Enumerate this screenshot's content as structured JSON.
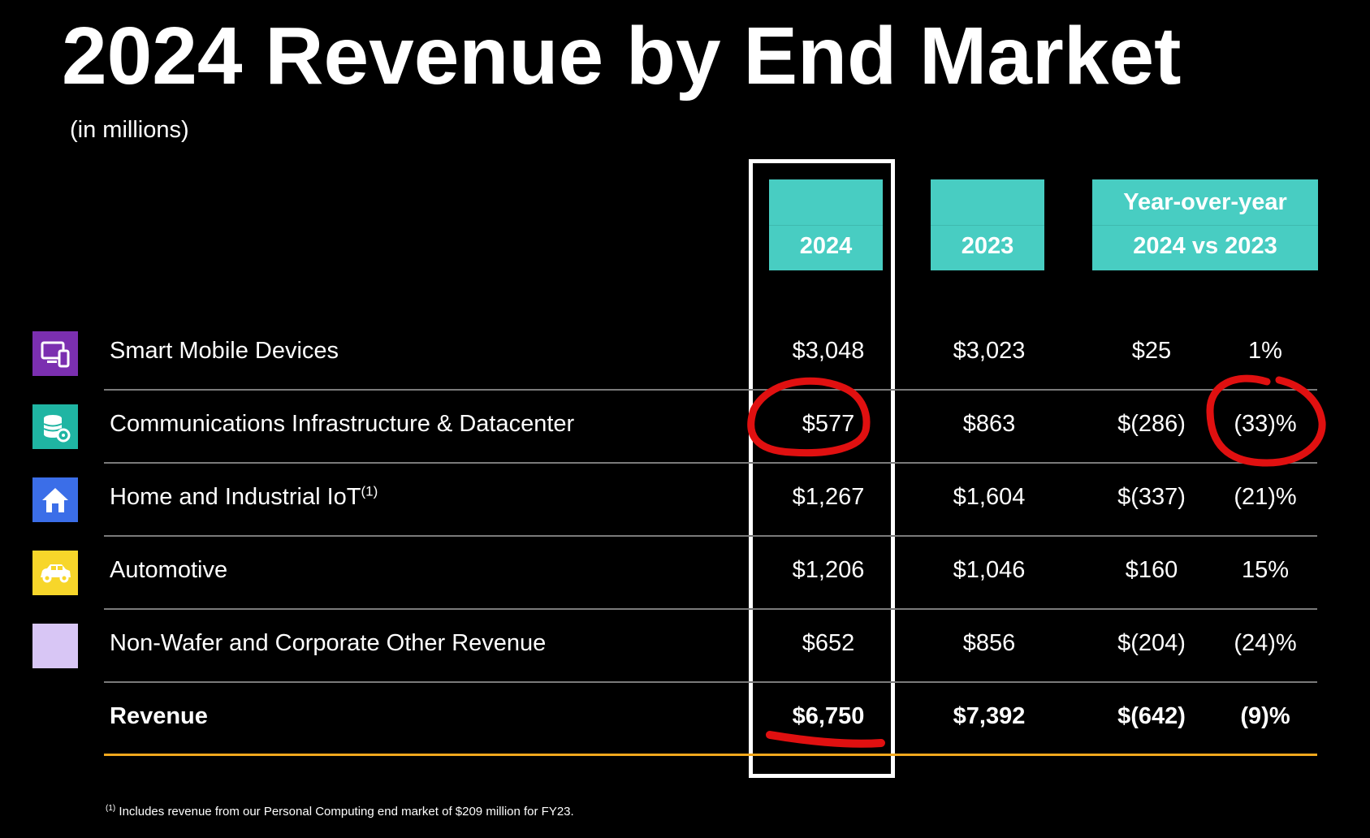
{
  "title": "2024 Revenue by End Market",
  "subtitle": "(in millions)",
  "headers": {
    "col_2024": "2024",
    "col_2023": "2023",
    "yoy_line1": "Year-over-year",
    "yoy_line2": "2024 vs 2023"
  },
  "rows": [
    {
      "label": "Smart Mobile Devices",
      "sup": "",
      "v2024": "$3,048",
      "v2023": "$3,023",
      "delta": "$25",
      "pct": "1%",
      "icon": "mobile-devices-icon",
      "icon_color": "#7b2fb0"
    },
    {
      "label": "Communications Infrastructure & Datacenter",
      "sup": "",
      "v2024": "$577",
      "v2023": "$863",
      "delta": "$(286)",
      "pct": "(33)%",
      "icon": "database-gear-icon",
      "icon_color": "#1fb5a3"
    },
    {
      "label": "Home and Industrial IoT",
      "sup": "(1)",
      "v2024": "$1,267",
      "v2023": "$1,604",
      "delta": "$(337)",
      "pct": "(21)%",
      "icon": "home-icon",
      "icon_color": "#3b6ee8"
    },
    {
      "label": "Automotive",
      "sup": "",
      "v2024": "$1,206",
      "v2023": "$1,046",
      "delta": "$160",
      "pct": "15%",
      "icon": "car-icon",
      "icon_color": "#f7d62a"
    },
    {
      "label": "Non-Wafer and Corporate Other Revenue",
      "sup": "",
      "v2024": "$652",
      "v2023": "$856",
      "delta": "$(204)",
      "pct": "(24)%",
      "icon": "lavender-square-icon",
      "icon_color": "#d8c6f5"
    }
  ],
  "total": {
    "label": "Revenue",
    "v2024": "$6,750",
    "v2023": "$7,392",
    "delta": "$(642)",
    "pct": "(9)%"
  },
  "footnote": {
    "sup": "(1)",
    "text": " Includes revenue from our Personal Computing end market of $209 million for FY23."
  },
  "colors": {
    "header_teal": "#48cdc2",
    "annotation_red": "#e01010",
    "bottom_rule": "#f2a81d"
  }
}
